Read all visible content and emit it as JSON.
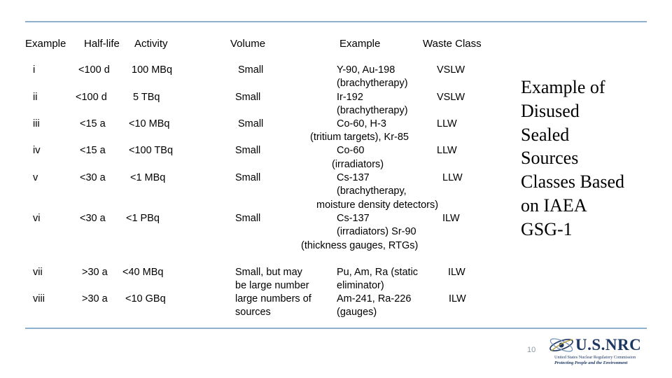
{
  "headers": {
    "example": "Example",
    "halflife": "Half-life",
    "activity": "Activity",
    "volume": "Volume",
    "example2": "Example",
    "waste_class": "Waste Class"
  },
  "rows": [
    {
      "cls": "i",
      "halflife": "<100 d",
      "activity": "100 MBq",
      "volume": "Small",
      "examples": [
        "Y-90, Au-198",
        "(brachytherapy)"
      ],
      "waste": "VSLW"
    },
    {
      "cls": "ii",
      "halflife": "<100 d",
      "activity": "5 TBq",
      "volume": "Small",
      "examples": [
        "Ir-192",
        "(brachytherapy)"
      ],
      "waste": "VSLW"
    },
    {
      "cls": "iii",
      "halflife": "<15 a",
      "activity": "<10 MBq",
      "volume": "Small",
      "examples": [
        "Co-60, H-3",
        "(tritium targets), Kr-85"
      ],
      "waste": "LLW"
    },
    {
      "cls": "iv",
      "halflife": "<15 a",
      "activity": "<100 TBq",
      "volume": "Small",
      "examples": [
        "Co-60",
        "(irradiators)"
      ],
      "waste": "LLW"
    },
    {
      "cls": "v",
      "halflife": "<30 a",
      "activity": "<1 MBq",
      "volume": "Small",
      "examples": [
        "Cs-137",
        "(brachytherapy,",
        "moisture density detectors)"
      ],
      "waste": "LLW"
    },
    {
      "cls": "vi",
      "halflife": "<30 a",
      "activity": "<1 PBq",
      "volume": "Small",
      "examples": [
        "Cs-137",
        "(irradiators) Sr-90",
        "(thickness gauges, RTGs)"
      ],
      "waste": "ILW"
    },
    {
      "cls": "vii",
      "halflife": ">30 a",
      "activity": "<40 MBq",
      "volume": "Small, but may",
      "examples": [
        "Pu, Am, Ra (static",
        "eliminator)"
      ],
      "waste": "ILW"
    },
    {
      "cls": "viii",
      "halflife": ">30 a",
      "activity": "<10 GBq",
      "volume": "be large number",
      "examples": [
        "Am-241, Ra-226",
        "(gauges)"
      ],
      "waste": "ILW"
    }
  ],
  "volume_extra": [
    "large numbers of",
    "sources"
  ],
  "side_title": [
    "Example of",
    "Disused",
    "Sealed",
    "Sources",
    "Classes Based",
    "on IAEA",
    "GSG-1"
  ],
  "page_number": "10",
  "logo": {
    "name": "U.S.NRC",
    "subtitle": "United States Nuclear Regulatory Commission",
    "tagline": "Protecting People and the Environment"
  },
  "colors": {
    "rule": "#8fb0cc",
    "logo": "#1d3763"
  }
}
